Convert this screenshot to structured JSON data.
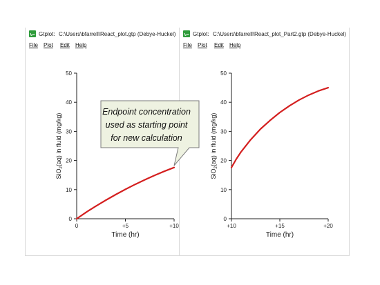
{
  "windows": [
    {
      "app": "Gtplot:",
      "path": "C:\\Users\\bfarrell\\React_plot.gtp  (Debye-Huckel)",
      "menu": [
        "File",
        "Plot",
        "Edit",
        "Help"
      ]
    },
    {
      "app": "Gtplot:",
      "path": "C:\\Users\\bfarrell\\React_plot_Part2.gtp  (Debye-Huckel)",
      "menu": [
        "File",
        "Plot",
        "Edit",
        "Help"
      ]
    }
  ],
  "callout": {
    "lines": [
      "Endpoint concentration",
      "used as starting point",
      "for new calculation"
    ]
  },
  "chart_data": [
    {
      "type": "line",
      "xlabel": "Time (hr)",
      "ylabel": "SiO2(aq) in fluid (mg/kg)",
      "xlim": [
        0,
        10
      ],
      "ylim": [
        0,
        50
      ],
      "xticks": [
        0,
        5,
        10
      ],
      "xtick_labels": [
        "0",
        "+5",
        "+10"
      ],
      "yticks": [
        0,
        10,
        20,
        30,
        40,
        50
      ],
      "ytick_labels": [
        "0",
        "10",
        "20",
        "30",
        "40",
        "50"
      ],
      "grid": false,
      "line_color": "#d41f1f",
      "series": [
        {
          "x": [
            0,
            1,
            2,
            3,
            4,
            5,
            6,
            7,
            8,
            9,
            10
          ],
          "y": [
            0,
            2.3,
            4.4,
            6.4,
            8.3,
            10.1,
            11.8,
            13.4,
            14.9,
            16.3,
            17.6
          ]
        }
      ]
    },
    {
      "type": "line",
      "xlabel": "Time (hr)",
      "ylabel": "SiO2(aq) in fluid (mg/kg)",
      "xlim": [
        10,
        20
      ],
      "ylim": [
        0,
        50
      ],
      "xticks": [
        10,
        15,
        20
      ],
      "xtick_labels": [
        "+10",
        "+15",
        "+20"
      ],
      "yticks": [
        0,
        10,
        20,
        30,
        40,
        50
      ],
      "ytick_labels": [
        "0",
        "10",
        "20",
        "30",
        "40",
        "50"
      ],
      "grid": false,
      "line_color": "#d41f1f",
      "series": [
        {
          "x": [
            10,
            10.5,
            11,
            12,
            13,
            14,
            15,
            16,
            17,
            18,
            19,
            20
          ],
          "y": [
            17.6,
            20.5,
            23.0,
            27.2,
            30.8,
            33.8,
            36.5,
            38.8,
            40.8,
            42.5,
            43.9,
            45.0
          ]
        }
      ]
    }
  ]
}
